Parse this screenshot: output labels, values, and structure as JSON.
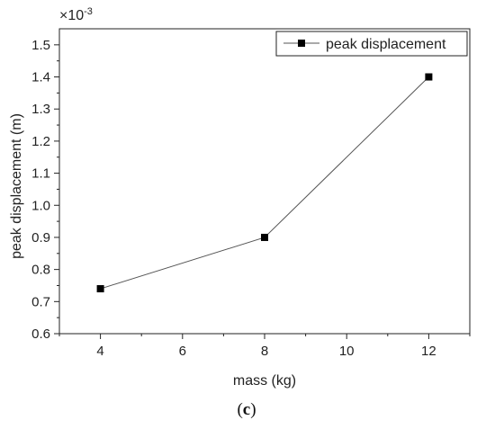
{
  "chart_data": {
    "type": "line",
    "x": [
      4,
      8,
      12
    ],
    "series": [
      {
        "name": "peak displacement",
        "values": [
          0.74,
          0.9,
          1.4
        ],
        "color": "#000000",
        "line_color": "#555555",
        "marker": "square"
      }
    ],
    "xlabel": "mass (kg)",
    "ylabel": "peak displacement (m)",
    "y_multiplier": "×10",
    "y_multiplier_exponent": "-3",
    "xlim": [
      3,
      13
    ],
    "ylim": [
      0.6,
      1.55
    ],
    "xticks": [
      4,
      6,
      8,
      10,
      12
    ],
    "yticks": [
      0.6,
      0.7,
      0.8,
      0.9,
      1.0,
      1.1,
      1.2,
      1.3,
      1.4,
      1.5
    ],
    "xtick_labels": [
      "4",
      "6",
      "8",
      "10",
      "12"
    ],
    "ytick_labels": [
      "0.6",
      "0.7",
      "0.8",
      "0.9",
      "1.0",
      "1.1",
      "1.2",
      "1.3",
      "1.4",
      "1.5"
    ],
    "grid": false,
    "legend_position": "top-right"
  },
  "caption": {
    "open": "(",
    "letter": "c",
    "close": ")"
  }
}
